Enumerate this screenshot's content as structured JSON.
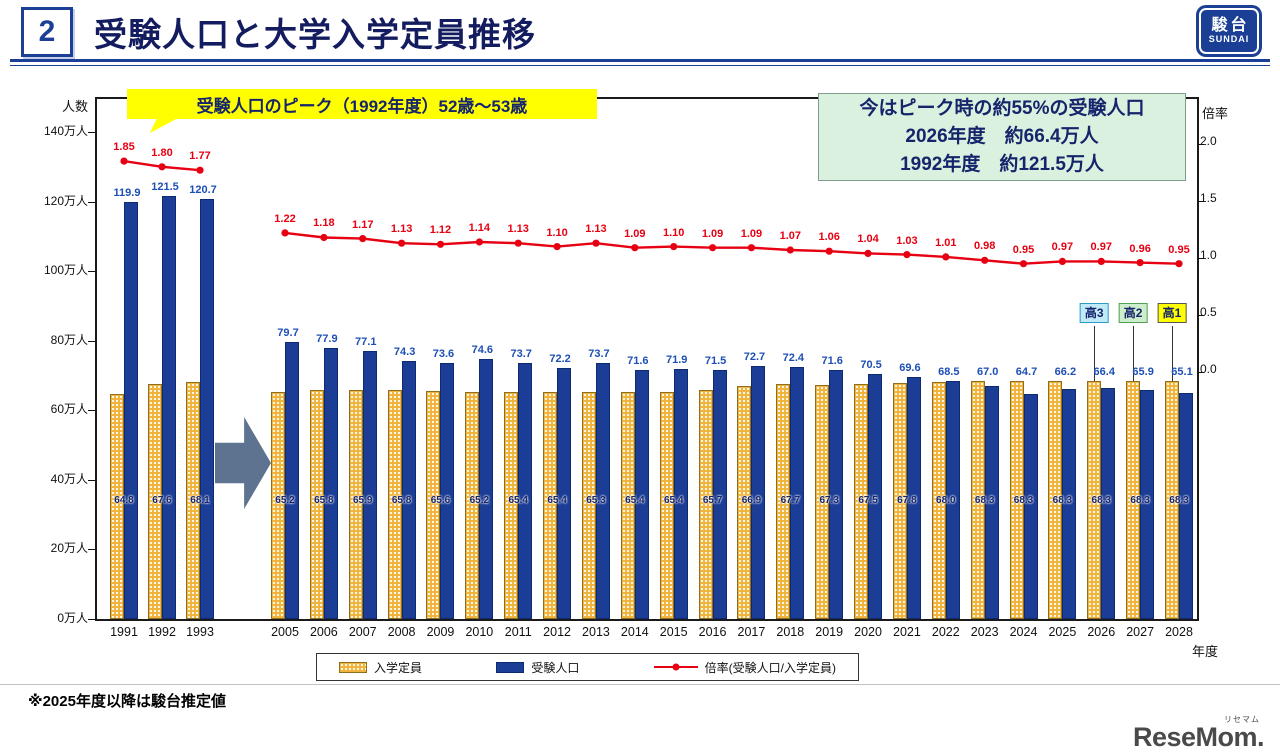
{
  "header": {
    "page_number": "2",
    "title": "受験人口と大学入学定員推移",
    "brand": {
      "name": "駿台",
      "sub": "SUNDAI"
    }
  },
  "annotations": {
    "peak_callout": "受験人口のピーク（1992年度）52歳〜53歳",
    "info_box": {
      "line1": "今はピーク時の約55%の受験人口",
      "line2": "2026年度　約66.4万人",
      "line3": "1992年度　約121.5万人"
    },
    "grade_badges": [
      {
        "label": "高3",
        "year": 2026,
        "bg": "#c2e9f7",
        "border": "#2e9bc6"
      },
      {
        "label": "高2",
        "year": 2027,
        "bg": "#cdedcd",
        "border": "#52a052"
      },
      {
        "label": "高1",
        "year": 2028,
        "bg": "#ffff00",
        "border": "#555555"
      }
    ]
  },
  "axes": {
    "left_title": "人数",
    "right_title": "倍率",
    "x_title": "年度",
    "left_ticks": [
      "140万人",
      "120万人",
      "100万人",
      "80万人",
      "60万人",
      "40万人",
      "20万人",
      "0万人"
    ],
    "right_ticks": [
      "2.0",
      "1.5",
      "1.0",
      "0.5",
      "0.0"
    ]
  },
  "legend": {
    "capacity": "入学定員",
    "examinees": "受験人口",
    "ratio": "倍率(受験人口/入学定員)"
  },
  "footnote": "※2025年度以降は駿台推定値",
  "credit": {
    "logo": "ReseMom.",
    "ruby": "リセマム"
  },
  "colors": {
    "bar_blue": "#1c3d96",
    "bar_gold": "#f0b43c",
    "line_red": "#e60012",
    "value_blue": "#1d4fb5",
    "text_navy": "#15246b",
    "brand_blue": "#1c3f96",
    "callout_yellow": "#ffff00",
    "infobox_green": "#d9f1de",
    "arrow_gray": "#5d7390"
  },
  "chart_data": {
    "type": "bar+line",
    "title": "受験人口と大学入学定員推移",
    "left_axis": {
      "label": "人数",
      "unit": "万人",
      "min": 0,
      "max": 140,
      "tick_step": 20
    },
    "right_axis": {
      "label": "倍率",
      "min": 0.0,
      "max": 2.0,
      "tick_step": 0.5
    },
    "x_label": "年度",
    "series_labels": {
      "capacity": "入学定員",
      "examinees": "受験人口",
      "ratio": "倍率(受験人口/入学定員)"
    },
    "groups": [
      {
        "years": [
          1991,
          1992,
          1993
        ],
        "capacity": [
          64.8,
          67.6,
          68.1
        ],
        "examinees": [
          119.9,
          121.5,
          120.7
        ],
        "ratio": [
          1.85,
          1.8,
          1.77
        ]
      },
      {
        "years": [
          2005,
          2006,
          2007,
          2008,
          2009,
          2010,
          2011,
          2012,
          2013,
          2014,
          2015,
          2016,
          2017,
          2018,
          2019,
          2020,
          2021,
          2022,
          2023,
          2024,
          2025,
          2026,
          2027,
          2028
        ],
        "capacity": [
          65.2,
          65.8,
          65.9,
          65.8,
          65.6,
          65.2,
          65.4,
          65.4,
          65.3,
          65.4,
          65.4,
          65.7,
          66.9,
          67.7,
          67.3,
          67.5,
          67.8,
          68.0,
          68.3,
          68.3,
          68.3,
          68.3,
          68.3,
          68.3
        ],
        "examinees": [
          79.7,
          77.9,
          77.1,
          74.3,
          73.6,
          74.6,
          73.7,
          72.2,
          73.7,
          71.6,
          71.9,
          71.5,
          72.7,
          72.4,
          71.6,
          70.5,
          69.6,
          68.5,
          67.0,
          64.7,
          66.2,
          66.4,
          65.9,
          65.1
        ],
        "ratio": [
          1.22,
          1.18,
          1.17,
          1.13,
          1.12,
          1.14,
          1.13,
          1.1,
          1.13,
          1.09,
          1.1,
          1.09,
          1.09,
          1.07,
          1.06,
          1.04,
          1.03,
          1.01,
          0.98,
          0.95,
          0.97,
          0.97,
          0.96,
          0.95
        ]
      }
    ],
    "note": "※2025年度以降は駿台推定値",
    "legend_position": "bottom",
    "grid": false
  }
}
